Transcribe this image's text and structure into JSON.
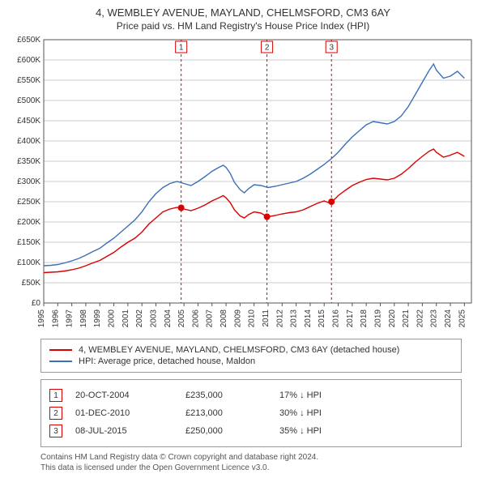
{
  "title": {
    "line1": "4, WEMBLEY AVENUE, MAYLAND, CHELMSFORD, CM3 6AY",
    "line2": "Price paid vs. HM Land Registry's House Price Index (HPI)",
    "fontsize_line1": 13,
    "fontsize_line2": 12,
    "color": "#333333"
  },
  "chart": {
    "type": "line",
    "background_color": "#ffffff",
    "grid_color": "#cccccc",
    "axis_color": "#555555",
    "axis_fontsize": 10,
    "x": {
      "min": 1995,
      "max": 2025.5,
      "ticks": [
        1995,
        1996,
        1997,
        1998,
        1999,
        2000,
        2001,
        2002,
        2003,
        2004,
        2005,
        2006,
        2007,
        2008,
        2009,
        2010,
        2011,
        2012,
        2013,
        2014,
        2015,
        2016,
        2017,
        2018,
        2019,
        2020,
        2021,
        2022,
        2023,
        2024,
        2025
      ],
      "tick_labels": [
        "1995",
        "1996",
        "1997",
        "1998",
        "1999",
        "2000",
        "2001",
        "2002",
        "2003",
        "2004",
        "2005",
        "2006",
        "2007",
        "2008",
        "2009",
        "2010",
        "2011",
        "2012",
        "2013",
        "2014",
        "2015",
        "2016",
        "2017",
        "2018",
        "2019",
        "2020",
        "2021",
        "2022",
        "2023",
        "2024",
        "2025"
      ],
      "tick_rotation": -90
    },
    "y": {
      "min": 0,
      "max": 650000,
      "ticks": [
        0,
        50000,
        100000,
        150000,
        200000,
        250000,
        300000,
        350000,
        400000,
        450000,
        500000,
        550000,
        600000,
        650000
      ],
      "tick_labels": [
        "£0",
        "£50K",
        "£100K",
        "£150K",
        "£200K",
        "£250K",
        "£300K",
        "£350K",
        "£400K",
        "£450K",
        "£500K",
        "£550K",
        "£600K",
        "£650K"
      ]
    },
    "series": [
      {
        "id": "property",
        "label": "4, WEMBLEY AVENUE, MAYLAND, CHELMSFORD, CM3 6AY (detached house)",
        "color": "#d90000",
        "line_width": 1.4,
        "points": [
          [
            1995.0,
            75000
          ],
          [
            1995.5,
            76000
          ],
          [
            1996.0,
            77000
          ],
          [
            1996.5,
            79000
          ],
          [
            1997.0,
            82000
          ],
          [
            1997.5,
            86000
          ],
          [
            1998.0,
            92000
          ],
          [
            1998.5,
            99000
          ],
          [
            1999.0,
            105000
          ],
          [
            1999.5,
            115000
          ],
          [
            2000.0,
            125000
          ],
          [
            2000.5,
            138000
          ],
          [
            2001.0,
            150000
          ],
          [
            2001.5,
            160000
          ],
          [
            2002.0,
            175000
          ],
          [
            2002.5,
            195000
          ],
          [
            2003.0,
            210000
          ],
          [
            2003.5,
            225000
          ],
          [
            2004.0,
            232000
          ],
          [
            2004.5,
            236000
          ],
          [
            2004.8,
            235000
          ],
          [
            2005.0,
            232000
          ],
          [
            2005.5,
            228000
          ],
          [
            2006.0,
            234000
          ],
          [
            2006.5,
            242000
          ],
          [
            2007.0,
            252000
          ],
          [
            2007.5,
            260000
          ],
          [
            2007.8,
            265000
          ],
          [
            2008.0,
            260000
          ],
          [
            2008.3,
            248000
          ],
          [
            2008.6,
            230000
          ],
          [
            2009.0,
            215000
          ],
          [
            2009.3,
            210000
          ],
          [
            2009.6,
            218000
          ],
          [
            2010.0,
            225000
          ],
          [
            2010.5,
            222000
          ],
          [
            2010.92,
            213000
          ],
          [
            2011.0,
            213000
          ],
          [
            2011.5,
            216000
          ],
          [
            2012.0,
            220000
          ],
          [
            2012.5,
            223000
          ],
          [
            2013.0,
            225000
          ],
          [
            2013.5,
            230000
          ],
          [
            2014.0,
            238000
          ],
          [
            2014.5,
            246000
          ],
          [
            2015.0,
            252000
          ],
          [
            2015.3,
            248000
          ],
          [
            2015.52,
            250000
          ],
          [
            2015.8,
            258000
          ],
          [
            2016.0,
            265000
          ],
          [
            2016.5,
            278000
          ],
          [
            2017.0,
            290000
          ],
          [
            2017.5,
            298000
          ],
          [
            2018.0,
            305000
          ],
          [
            2018.5,
            308000
          ],
          [
            2019.0,
            306000
          ],
          [
            2019.5,
            304000
          ],
          [
            2020.0,
            308000
          ],
          [
            2020.5,
            318000
          ],
          [
            2021.0,
            332000
          ],
          [
            2021.5,
            348000
          ],
          [
            2022.0,
            362000
          ],
          [
            2022.5,
            375000
          ],
          [
            2022.8,
            380000
          ],
          [
            2023.0,
            372000
          ],
          [
            2023.5,
            360000
          ],
          [
            2024.0,
            365000
          ],
          [
            2024.5,
            372000
          ],
          [
            2025.0,
            362000
          ]
        ]
      },
      {
        "id": "hpi",
        "label": "HPI: Average price, detached house, Maldon",
        "color": "#3b6fb6",
        "line_width": 1.4,
        "points": [
          [
            1995.0,
            92000
          ],
          [
            1995.5,
            93000
          ],
          [
            1996.0,
            95000
          ],
          [
            1996.5,
            99000
          ],
          [
            1997.0,
            104000
          ],
          [
            1997.5,
            110000
          ],
          [
            1998.0,
            118000
          ],
          [
            1998.5,
            127000
          ],
          [
            1999.0,
            135000
          ],
          [
            1999.5,
            148000
          ],
          [
            2000.0,
            160000
          ],
          [
            2000.5,
            175000
          ],
          [
            2001.0,
            190000
          ],
          [
            2001.5,
            205000
          ],
          [
            2002.0,
            225000
          ],
          [
            2002.5,
            250000
          ],
          [
            2003.0,
            270000
          ],
          [
            2003.5,
            285000
          ],
          [
            2004.0,
            295000
          ],
          [
            2004.5,
            300000
          ],
          [
            2005.0,
            295000
          ],
          [
            2005.5,
            290000
          ],
          [
            2006.0,
            300000
          ],
          [
            2006.5,
            312000
          ],
          [
            2007.0,
            325000
          ],
          [
            2007.5,
            335000
          ],
          [
            2007.8,
            340000
          ],
          [
            2008.0,
            335000
          ],
          [
            2008.3,
            320000
          ],
          [
            2008.6,
            298000
          ],
          [
            2009.0,
            280000
          ],
          [
            2009.3,
            272000
          ],
          [
            2009.6,
            282000
          ],
          [
            2010.0,
            292000
          ],
          [
            2010.5,
            290000
          ],
          [
            2011.0,
            285000
          ],
          [
            2011.5,
            288000
          ],
          [
            2012.0,
            292000
          ],
          [
            2012.5,
            296000
          ],
          [
            2013.0,
            300000
          ],
          [
            2013.5,
            308000
          ],
          [
            2014.0,
            318000
          ],
          [
            2014.5,
            330000
          ],
          [
            2015.0,
            342000
          ],
          [
            2015.5,
            356000
          ],
          [
            2016.0,
            372000
          ],
          [
            2016.5,
            392000
          ],
          [
            2017.0,
            410000
          ],
          [
            2017.5,
            425000
          ],
          [
            2018.0,
            440000
          ],
          [
            2018.5,
            448000
          ],
          [
            2019.0,
            445000
          ],
          [
            2019.5,
            442000
          ],
          [
            2020.0,
            448000
          ],
          [
            2020.5,
            462000
          ],
          [
            2021.0,
            485000
          ],
          [
            2021.5,
            515000
          ],
          [
            2022.0,
            545000
          ],
          [
            2022.5,
            575000
          ],
          [
            2022.8,
            590000
          ],
          [
            2023.0,
            575000
          ],
          [
            2023.5,
            555000
          ],
          [
            2024.0,
            560000
          ],
          [
            2024.5,
            572000
          ],
          [
            2025.0,
            555000
          ]
        ]
      }
    ],
    "sale_markers": [
      {
        "n": "1",
        "x": 2004.8,
        "y": 235000,
        "color": "#d90000"
      },
      {
        "n": "2",
        "x": 2010.92,
        "y": 213000,
        "color": "#d90000"
      },
      {
        "n": "3",
        "x": 2015.52,
        "y": 250000,
        "color": "#d90000"
      }
    ],
    "sale_point_radius": 4,
    "marker_badge_border": "#d90000",
    "marker_badge_bg": "#ffffff",
    "marker_badge_text": "#333333"
  },
  "legend": {
    "border_color": "#999999",
    "bg": "#ffffff",
    "fontsize": 11
  },
  "sales_table": {
    "border_color": "#999999",
    "rows": [
      {
        "n": "1",
        "date": "20-OCT-2004",
        "price": "£235,000",
        "diff": "17% ↓ HPI"
      },
      {
        "n": "2",
        "date": "01-DEC-2010",
        "price": "£213,000",
        "diff": "30% ↓ HPI"
      },
      {
        "n": "3",
        "date": "08-JUL-2015",
        "price": "£250,000",
        "diff": "35% ↓ HPI"
      }
    ]
  },
  "footer": {
    "line1": "Contains HM Land Registry data © Crown copyright and database right 2024.",
    "line2": "This data is licensed under the Open Government Licence v3.0.",
    "color": "#555555",
    "fontsize": 10
  }
}
